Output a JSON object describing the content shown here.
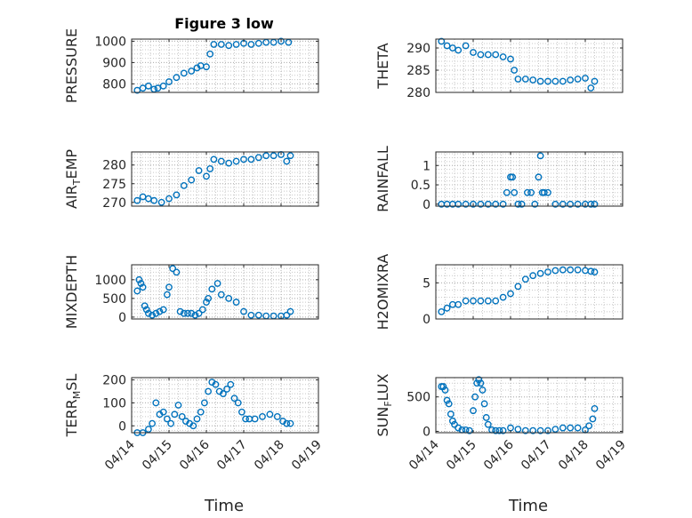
{
  "figure": {
    "title": "Figure 3 low",
    "xlabel": "Time",
    "x_ticklabels": [
      "04/14",
      "04/15",
      "04/16",
      "04/17",
      "04/18",
      "04/19"
    ],
    "marker_color": "#0072BD",
    "grid_color": "#c8c8c8"
  },
  "chart_data": [
    {
      "type": "scatter",
      "ylabel_main": "PRESSURE",
      "ylabel_sub": "",
      "xlim": [
        0,
        5
      ],
      "ylim": [
        760,
        1010
      ],
      "yticks": [
        800,
        900,
        1000
      ],
      "x": [
        0.15,
        0.3,
        0.45,
        0.6,
        0.7,
        0.85,
        1.0,
        1.2,
        1.4,
        1.6,
        1.75,
        1.85,
        2.0,
        2.1,
        2.2,
        2.4,
        2.6,
        2.8,
        3.0,
        3.2,
        3.4,
        3.6,
        3.8,
        4.0,
        4.2
      ],
      "y": [
        770,
        780,
        790,
        775,
        780,
        790,
        810,
        830,
        850,
        860,
        875,
        885,
        880,
        940,
        985,
        985,
        980,
        985,
        990,
        985,
        990,
        995,
        995,
        1000,
        995
      ]
    },
    {
      "type": "scatter",
      "ylabel_main": "THETA",
      "ylabel_sub": "",
      "xlim": [
        0,
        5
      ],
      "ylim": [
        280,
        292
      ],
      "yticks": [
        280,
        285,
        290
      ],
      "x": [
        0.15,
        0.3,
        0.45,
        0.6,
        0.8,
        1.0,
        1.2,
        1.4,
        1.6,
        1.8,
        2.0,
        2.1,
        2.2,
        2.4,
        2.6,
        2.8,
        3.0,
        3.2,
        3.4,
        3.6,
        3.8,
        4.0,
        4.15,
        4.25
      ],
      "y": [
        291.5,
        290.5,
        290,
        289.5,
        290.5,
        289,
        288.5,
        288.5,
        288.5,
        288,
        287.5,
        285,
        283,
        283,
        282.8,
        282.5,
        282.5,
        282.5,
        282.5,
        282.8,
        283,
        283.2,
        281,
        282.5
      ]
    },
    {
      "type": "scatter",
      "ylabel_main": "AIR",
      "ylabel_sub": "T",
      "ylabel_tail": "EMP",
      "xlim": [
        0,
        5
      ],
      "ylim": [
        269,
        283.5
      ],
      "yticks": [
        270,
        275,
        280
      ],
      "x": [
        0.15,
        0.3,
        0.45,
        0.6,
        0.8,
        1.0,
        1.2,
        1.4,
        1.6,
        1.8,
        2.0,
        2.1,
        2.2,
        2.4,
        2.6,
        2.8,
        3.0,
        3.2,
        3.4,
        3.6,
        3.8,
        4.0,
        4.15,
        4.25
      ],
      "y": [
        270.5,
        271.5,
        271,
        270.5,
        270,
        271,
        272,
        274.5,
        276,
        278.5,
        277,
        279,
        281.5,
        281,
        280.5,
        281,
        281.5,
        281.5,
        282,
        282.5,
        282.5,
        282.8,
        281,
        282.5
      ]
    },
    {
      "type": "scatter",
      "ylabel_main": "RAINFALL",
      "ylabel_sub": "",
      "xlim": [
        0,
        5
      ],
      "ylim": [
        -0.05,
        1.35
      ],
      "yticks": [
        0,
        0.5,
        1
      ],
      "ytick_labels": [
        "0",
        "0.5",
        "1"
      ],
      "x": [
        0.15,
        0.3,
        0.45,
        0.6,
        0.8,
        1.0,
        1.2,
        1.4,
        1.6,
        1.8,
        1.9,
        2.0,
        2.05,
        2.1,
        2.2,
        2.3,
        2.45,
        2.55,
        2.65,
        2.75,
        2.8,
        2.85,
        2.9,
        3.0,
        3.2,
        3.4,
        3.6,
        3.8,
        4.0,
        4.15,
        4.25
      ],
      "y": [
        0,
        0,
        0,
        0,
        0,
        0,
        0,
        0,
        0,
        0,
        0.3,
        0.7,
        0.7,
        0.3,
        0,
        0,
        0.3,
        0.3,
        0,
        0.7,
        1.25,
        0.3,
        0.3,
        0.3,
        0,
        0,
        0,
        0,
        0,
        0,
        0
      ]
    },
    {
      "type": "scatter",
      "ylabel_main": "MIXDEPTH",
      "ylabel_sub": "",
      "xlim": [
        0,
        5
      ],
      "ylim": [
        -50,
        1400
      ],
      "yticks": [
        0,
        500,
        1000
      ],
      "x": [
        0.15,
        0.2,
        0.25,
        0.3,
        0.35,
        0.4,
        0.45,
        0.55,
        0.65,
        0.75,
        0.85,
        0.95,
        1.0,
        1.1,
        1.2,
        1.3,
        1.4,
        1.5,
        1.6,
        1.7,
        1.8,
        1.9,
        2.0,
        2.05,
        2.15,
        2.3,
        2.4,
        2.6,
        2.8,
        3.0,
        3.2,
        3.4,
        3.6,
        3.8,
        4.0,
        4.15,
        4.25
      ],
      "y": [
        700,
        1000,
        900,
        800,
        300,
        200,
        100,
        50,
        100,
        150,
        200,
        600,
        800,
        1300,
        1200,
        150,
        100,
        100,
        100,
        50,
        100,
        200,
        400,
        500,
        750,
        900,
        600,
        500,
        400,
        150,
        50,
        50,
        30,
        30,
        30,
        50,
        150
      ]
    },
    {
      "type": "scatter",
      "ylabel_main": "H2OMIXRA",
      "ylabel_sub": "",
      "xlim": [
        0,
        5
      ],
      "ylim": [
        0,
        7.5
      ],
      "yticks": [
        0,
        5
      ],
      "x": [
        0.15,
        0.3,
        0.45,
        0.6,
        0.8,
        1.0,
        1.2,
        1.4,
        1.6,
        1.8,
        2.0,
        2.2,
        2.4,
        2.6,
        2.8,
        3.0,
        3.2,
        3.4,
        3.6,
        3.8,
        4.0,
        4.15,
        4.25
      ],
      "y": [
        1,
        1.5,
        2,
        2,
        2.5,
        2.5,
        2.5,
        2.5,
        2.5,
        3,
        3.5,
        4.5,
        5.5,
        6,
        6.3,
        6.5,
        6.7,
        6.8,
        6.8,
        6.8,
        6.7,
        6.6,
        6.5
      ]
    },
    {
      "type": "scatter",
      "ylabel_main": "TERR",
      "ylabel_sub": "M",
      "ylabel_tail": "SL",
      "xlim": [
        0,
        5
      ],
      "ylim": [
        -30,
        210
      ],
      "yticks": [
        0,
        100,
        200
      ],
      "x": [
        0.15,
        0.3,
        0.45,
        0.55,
        0.65,
        0.75,
        0.85,
        0.95,
        1.05,
        1.15,
        1.25,
        1.35,
        1.45,
        1.55,
        1.65,
        1.75,
        1.85,
        1.95,
        2.05,
        2.15,
        2.25,
        2.35,
        2.45,
        2.55,
        2.65,
        2.75,
        2.85,
        2.95,
        3.05,
        3.15,
        3.3,
        3.5,
        3.7,
        3.9,
        4.05,
        4.15,
        4.25
      ],
      "y": [
        -30,
        -30,
        -15,
        10,
        100,
        50,
        60,
        30,
        10,
        50,
        90,
        40,
        20,
        10,
        0,
        30,
        60,
        100,
        150,
        190,
        180,
        150,
        140,
        160,
        180,
        120,
        100,
        60,
        30,
        30,
        30,
        40,
        50,
        40,
        20,
        10,
        10
      ]
    },
    {
      "type": "scatter",
      "ylabel_main": "SUN",
      "ylabel_sub": "F",
      "ylabel_tail": "LUX",
      "xlim": [
        0,
        5
      ],
      "ylim": [
        -20,
        780
      ],
      "yticks": [
        0,
        500
      ],
      "x": [
        0.15,
        0.2,
        0.25,
        0.3,
        0.35,
        0.4,
        0.45,
        0.5,
        0.6,
        0.7,
        0.8,
        0.9,
        1.0,
        1.05,
        1.1,
        1.15,
        1.2,
        1.25,
        1.3,
        1.35,
        1.4,
        1.5,
        1.6,
        1.7,
        1.8,
        2.0,
        2.2,
        2.4,
        2.6,
        2.8,
        3.0,
        3.2,
        3.4,
        3.6,
        3.8,
        4.0,
        4.1,
        4.2,
        4.25
      ],
      "y": [
        650,
        650,
        600,
        450,
        400,
        250,
        150,
        100,
        50,
        20,
        20,
        10,
        300,
        500,
        700,
        750,
        700,
        600,
        400,
        200,
        100,
        20,
        10,
        10,
        10,
        50,
        30,
        10,
        10,
        10,
        10,
        30,
        50,
        50,
        50,
        20,
        80,
        180,
        330
      ]
    }
  ]
}
